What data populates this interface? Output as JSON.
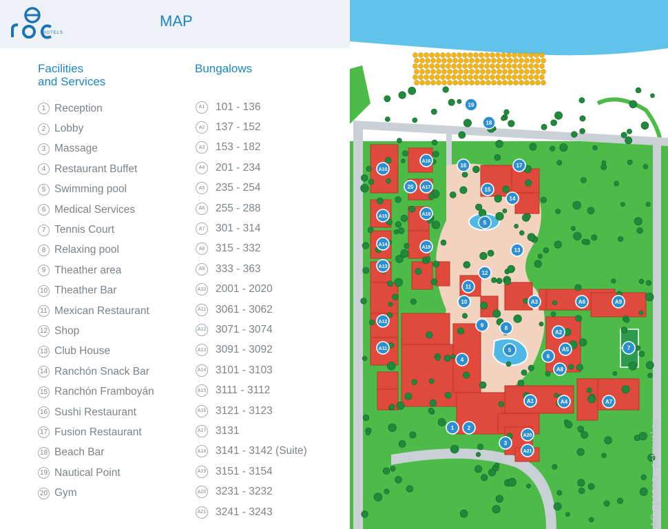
{
  "brand": {
    "name": "roc",
    "sub": "HOTELS"
  },
  "header": {
    "title": "MAP"
  },
  "facilities": {
    "title_line1": "Facilities",
    "title_line2": "and Services",
    "items": [
      {
        "num": "1",
        "label": "Reception"
      },
      {
        "num": "2",
        "label": "Lobby"
      },
      {
        "num": "3",
        "label": "Massage"
      },
      {
        "num": "4",
        "label": "Restaurant Buffet"
      },
      {
        "num": "5",
        "label": "Swimming pool"
      },
      {
        "num": "6",
        "label": "Medical Services"
      },
      {
        "num": "7",
        "label": "Tennis Court"
      },
      {
        "num": "8",
        "label": "Relaxing pool"
      },
      {
        "num": "9",
        "label": "Theather area"
      },
      {
        "num": "10",
        "label": "Theather Bar"
      },
      {
        "num": "11",
        "label": "Mexican Restaurant"
      },
      {
        "num": "12",
        "label": "Shop"
      },
      {
        "num": "13",
        "label": "Club House"
      },
      {
        "num": "14",
        "label": "Ranchón Snack Bar"
      },
      {
        "num": "15",
        "label": "Ranchón Framboyán"
      },
      {
        "num": "16",
        "label": "Sushi Restaurant"
      },
      {
        "num": "17",
        "label": "Fusion Restaurant"
      },
      {
        "num": "18",
        "label": "Beach Bar"
      },
      {
        "num": "19",
        "label": "Nautical Point"
      },
      {
        "num": "20",
        "label": "Gym"
      }
    ]
  },
  "bungalows": {
    "title": "Bungalows",
    "items": [
      {
        "code": "A1",
        "range": "101 - 136"
      },
      {
        "code": "A2",
        "range": "137 - 152"
      },
      {
        "code": "A3",
        "range": "153 - 182"
      },
      {
        "code": "A4",
        "range": "201 - 234"
      },
      {
        "code": "A5",
        "range": "235 - 254"
      },
      {
        "code": "A6",
        "range": "255 - 288"
      },
      {
        "code": "A7",
        "range": "301 - 314"
      },
      {
        "code": "A8",
        "range": "315 - 332"
      },
      {
        "code": "A9",
        "range": "333 - 363"
      },
      {
        "code": "A10",
        "range": "2001 - 2020"
      },
      {
        "code": "A11",
        "range": "3061 - 3062"
      },
      {
        "code": "A12",
        "range": "3071 - 3074"
      },
      {
        "code": "A13",
        "range": "3091 - 3092"
      },
      {
        "code": "A14",
        "range": "3101 - 3103"
      },
      {
        "code": "A15",
        "range": "3111 - 3112"
      },
      {
        "code": "A16",
        "range": "3121 - 3123"
      },
      {
        "code": "A17",
        "range": "3131"
      },
      {
        "code": "A18",
        "range": "3141 - 3142 (Suite)"
      },
      {
        "code": "A19",
        "range": "3151 - 3154"
      },
      {
        "code": "A20",
        "range": "3231 - 3232"
      },
      {
        "code": "A21",
        "range": "3241 - 3243"
      }
    ]
  },
  "map": {
    "colors": {
      "sea": "#62c3ea",
      "sand": "#ffffff",
      "grass": "#4cbb48",
      "road": "#c9d0d6",
      "roof": "#e04a3c",
      "roof_dark": "#b93628",
      "path": "#f1d3c0",
      "pool": "#4fb8e6",
      "marker": "#2b8fd2",
      "court": "#2e9a4d",
      "tree": "#1f8a3c"
    },
    "markers": [
      {
        "label": "19"
      },
      {
        "label": "18"
      },
      {
        "label": "16"
      },
      {
        "label": "17"
      },
      {
        "label": "15"
      },
      {
        "label": "14"
      },
      {
        "label": "13"
      },
      {
        "label": "12"
      },
      {
        "label": "11"
      },
      {
        "label": "10"
      },
      {
        "label": "9"
      },
      {
        "label": "8"
      },
      {
        "label": "7"
      },
      {
        "label": "6"
      },
      {
        "label": "5"
      },
      {
        "label": "5"
      },
      {
        "label": "4"
      },
      {
        "label": "3"
      },
      {
        "label": "2"
      },
      {
        "label": "1"
      },
      {
        "label": "20"
      },
      {
        "label": "A1"
      },
      {
        "label": "A2"
      },
      {
        "label": "A3"
      },
      {
        "label": "A4"
      },
      {
        "label": "A5"
      },
      {
        "label": "A6"
      },
      {
        "label": "A7"
      },
      {
        "label": "A8"
      },
      {
        "label": "A9"
      },
      {
        "label": "A10"
      },
      {
        "label": "A11"
      },
      {
        "label": "A12"
      },
      {
        "label": "A13"
      },
      {
        "label": "A14"
      },
      {
        "label": "A15"
      },
      {
        "label": "A16"
      },
      {
        "label": "A17"
      },
      {
        "label": "A18"
      },
      {
        "label": "A19"
      },
      {
        "label": "A20"
      },
      {
        "label": "A21"
      }
    ]
  },
  "watermark": {
    "text": "АС-тревел · actravel.ru"
  }
}
